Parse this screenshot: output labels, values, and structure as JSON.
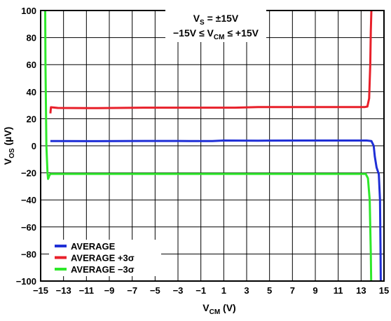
{
  "chart_data": {
    "type": "line",
    "title": "",
    "xlabel": {
      "main": "V",
      "sub": "CM",
      "suffix": " (V)"
    },
    "ylabel": {
      "main": "V",
      "sub": "OS",
      "suffix": " (µV)"
    },
    "xlim": [
      -15,
      15
    ],
    "ylim": [
      -100,
      100
    ],
    "x_ticks": [
      -15,
      -13,
      -11,
      -9,
      -7,
      -5,
      -3,
      -1,
      1,
      3,
      5,
      7,
      9,
      11,
      13,
      15
    ],
    "x_tick_labels": [
      "−15",
      "−13",
      "−11",
      "−9",
      "−7",
      "−5",
      "−3",
      "−1",
      "1",
      "3",
      "5",
      "7",
      "9",
      "11",
      "13",
      "15"
    ],
    "y_ticks": [
      -100,
      -80,
      -60,
      -40,
      -20,
      0,
      20,
      40,
      60,
      80,
      100
    ],
    "y_tick_labels": [
      "−100",
      "−80",
      "−60",
      "−40",
      "−20",
      "0",
      "20",
      "40",
      "60",
      "80",
      "100"
    ],
    "grid": true,
    "legend_position": "bottom-left",
    "annotation": {
      "line1": {
        "main": "V",
        "sub": "S",
        "suffix": " = ±15V"
      },
      "line2": {
        "prefix": "−15V ≤ V",
        "sub": "CM",
        "suffix": " ≤ +15V"
      }
    },
    "series": [
      {
        "name": "AVERAGE",
        "color": "#1f2fd6",
        "x": [
          -14.15,
          -14.1,
          -13.5,
          -10,
          -6,
          -2,
          0,
          1,
          4,
          8,
          12,
          13.5,
          13.9,
          14.1,
          14.2,
          14.35,
          14.55,
          14.65,
          14.7,
          14.72
        ],
        "y": [
          3.5,
          3.5,
          3.5,
          3.4,
          3.6,
          3.5,
          3.5,
          3.9,
          3.8,
          3.9,
          3.9,
          3.9,
          3.5,
          0,
          -8,
          -16,
          -21,
          -40,
          -80,
          -100
        ]
      },
      {
        "name": "AVERAGE +3σ",
        "color": "#e8202a",
        "x": [
          -14.15,
          -14.1,
          -13.5,
          -10,
          -6,
          -2,
          2,
          4,
          6,
          10,
          13.3,
          13.55,
          13.7,
          13.8,
          13.85,
          13.9
        ],
        "y": [
          24,
          28.5,
          28,
          27.8,
          28.2,
          28.2,
          28.2,
          28.6,
          28.6,
          28.6,
          28.6,
          29,
          35,
          60,
          85,
          100
        ]
      },
      {
        "name": "AVERAGE −3σ",
        "color": "#2ee82a",
        "x": [
          -14.6,
          -14.58,
          -14.5,
          -14.4,
          -14.35,
          -14.3,
          -14.25,
          -14.2,
          -14.15,
          -14.1,
          -13.5,
          -10,
          -6,
          -2,
          2,
          6,
          10,
          13.4,
          13.6,
          13.75,
          13.85,
          13.88
        ],
        "y": [
          100,
          60,
          0,
          -20,
          -24.5,
          -23.5,
          -22,
          -21.5,
          -21,
          -20.8,
          -20.8,
          -20.8,
          -20.8,
          -20.8,
          -20.8,
          -20.8,
          -20.8,
          -20.8,
          -24,
          -40,
          -80,
          -100
        ]
      }
    ]
  }
}
